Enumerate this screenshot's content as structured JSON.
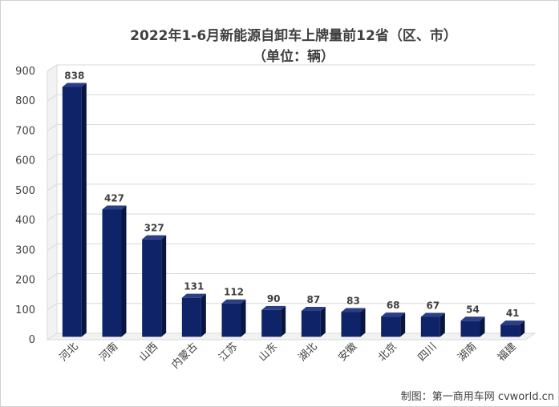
{
  "chart_data": {
    "type": "bar",
    "title": "2022年1-6月新能源自卸车上牌量前12省（区、市）",
    "subtitle": "（单位：辆）",
    "categories": [
      "河北",
      "河南",
      "山西",
      "内蒙古",
      "江苏",
      "山东",
      "湖北",
      "安徽",
      "北京",
      "四川",
      "湖南",
      "福建"
    ],
    "values": [
      838,
      427,
      327,
      131,
      112,
      90,
      87,
      83,
      68,
      67,
      54,
      41
    ],
    "data_labels": [
      "838",
      "427",
      "327",
      "131",
      "112",
      "90",
      "87",
      "83",
      "68",
      "67",
      "54",
      "41"
    ],
    "y_ticks": [
      "0",
      "100",
      "200",
      "300",
      "400",
      "500",
      "600",
      "700",
      "800",
      "900"
    ],
    "ylim": [
      0,
      900
    ],
    "xlabel": "",
    "ylabel": "",
    "grid": true,
    "legend": "none",
    "bar_color": "#0f2468",
    "bar_color_dark": "#081540"
  },
  "source_note": "制图：第一商用车网 cvworld.cn"
}
